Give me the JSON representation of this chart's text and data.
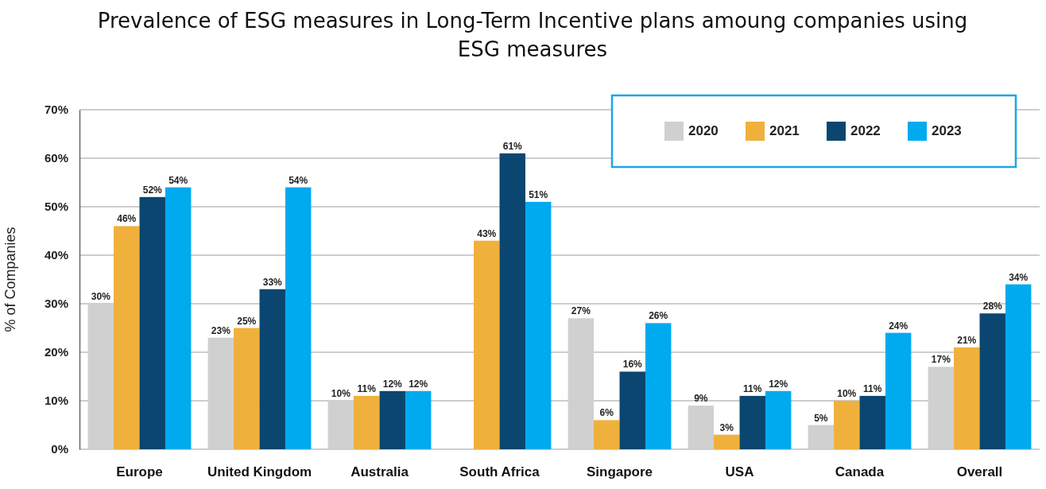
{
  "chart_data": {
    "type": "bar",
    "title": "Prevalence of ESG measures in Long-Term Incentive plans amoung companies using ESG measures",
    "ylabel": "% of Companies",
    "categories": [
      "Europe",
      "United Kingdom",
      "Australia",
      "South Africa",
      "Singapore",
      "USA",
      "Canada",
      "Overall"
    ],
    "series": [
      {
        "name": "2020",
        "color": "#d0d0d0",
        "values": [
          30,
          23,
          10,
          null,
          27,
          9,
          5,
          17
        ],
        "value_labels": [
          "30%",
          "23%",
          "10%",
          null,
          "27%",
          "9%",
          "5%",
          "17%"
        ]
      },
      {
        "name": "2021",
        "color": "#f0b03c",
        "values": [
          46,
          25,
          11,
          43,
          6,
          3,
          10,
          21
        ],
        "value_labels": [
          "46%",
          "25%",
          "11%",
          "43%",
          "6%",
          "3%",
          "10%",
          "21%"
        ]
      },
      {
        "name": "2022",
        "color": "#0a4670",
        "values": [
          52,
          33,
          12,
          61,
          16,
          11,
          11,
          28
        ],
        "value_labels": [
          "52%",
          "33%",
          "12%",
          "61%",
          "16%",
          "11%",
          "11%",
          "28%"
        ]
      },
      {
        "name": "2023",
        "color": "#00aaef",
        "values": [
          54,
          54,
          12,
          51,
          26,
          12,
          24,
          34
        ],
        "value_labels": [
          "54%",
          "54%",
          "12%",
          "51%",
          "26%",
          "12%",
          "24%",
          "34%"
        ]
      }
    ],
    "ylim": [
      0,
      70
    ],
    "yticks": [
      {
        "value": 0,
        "label": "0%"
      },
      {
        "value": 10,
        "label": "10%"
      },
      {
        "value": 20,
        "label": "20%"
      },
      {
        "value": 30,
        "label": "30%"
      },
      {
        "value": 40,
        "label": "40%"
      },
      {
        "value": 50,
        "label": "50%"
      },
      {
        "value": 60,
        "label": "60%"
      },
      {
        "value": 70,
        "label": "70%"
      }
    ],
    "grid": "y",
    "legend": "top right"
  }
}
